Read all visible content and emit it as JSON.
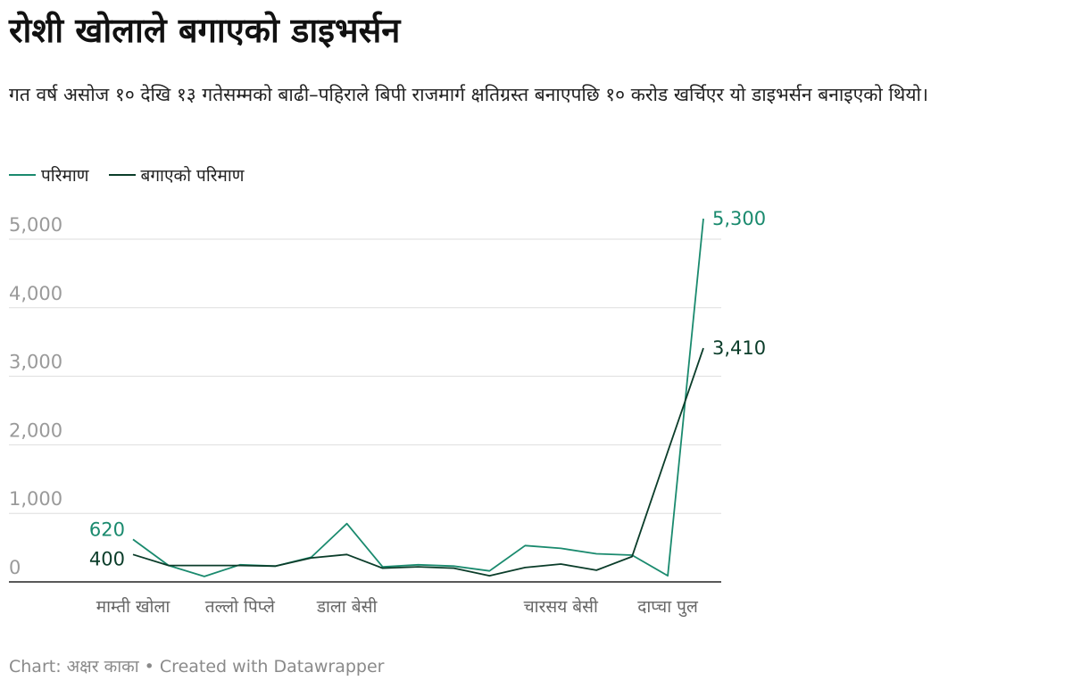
{
  "header": {
    "title": "रोशी खोलाले बगाएको डाइभर्सन",
    "subtitle": "गत वर्ष असोज १० देखि १३ गतेसम्मको बाढी–पहिराले बिपी राजमार्ग क्षतिग्रस्त बनाएपछि १० करोड खर्चिएर यो डाइभर्सन बनाइएको थियो।"
  },
  "legend": {
    "items": [
      {
        "label": "परिमाण",
        "color": "#1a8a6e"
      },
      {
        "label": "बगाएको परिमाण",
        "color": "#0b3d2a"
      }
    ]
  },
  "footer": {
    "credit": "Chart: अक्षर काका • Created with Datawrapper"
  },
  "chart_data": {
    "type": "line",
    "title": "रोशी खोलाले बगाएको डाइभर्सन",
    "xlabel": "",
    "ylabel": "",
    "ylim": [
      0,
      5000
    ],
    "yticks": [
      0,
      1000,
      2000,
      3000,
      4000,
      5000
    ],
    "ytick_labels": [
      "0",
      "1,000",
      "2,000",
      "3,000",
      "4,000",
      "5,000"
    ],
    "grid": true,
    "legend_position": "top-left",
    "x_labels": [
      {
        "index": 0,
        "label": "माम्ती खोला"
      },
      {
        "index": 3,
        "label": "तल्लो पिप्ले"
      },
      {
        "index": 6,
        "label": "डाला बेसी"
      },
      {
        "index": 12,
        "label": "चारसय बेसी"
      },
      {
        "index": 15,
        "label": "दाप्चा पुल"
      }
    ],
    "series": [
      {
        "name": "परिमाण",
        "color": "#1a8a6e",
        "values": [
          620,
          240,
          80,
          250,
          230,
          360,
          850,
          220,
          250,
          230,
          160,
          530,
          490,
          410,
          390,
          90,
          5300
        ],
        "end_labels": {
          "first": "620",
          "last": "5,300"
        }
      },
      {
        "name": "बगाएको परिमाण",
        "color": "#0b3d2a",
        "values": [
          400,
          240,
          240,
          240,
          230,
          350,
          400,
          200,
          220,
          200,
          90,
          210,
          260,
          170,
          370,
          1900,
          3410
        ],
        "end_labels": {
          "first": "400",
          "last": "3,410"
        }
      }
    ]
  }
}
